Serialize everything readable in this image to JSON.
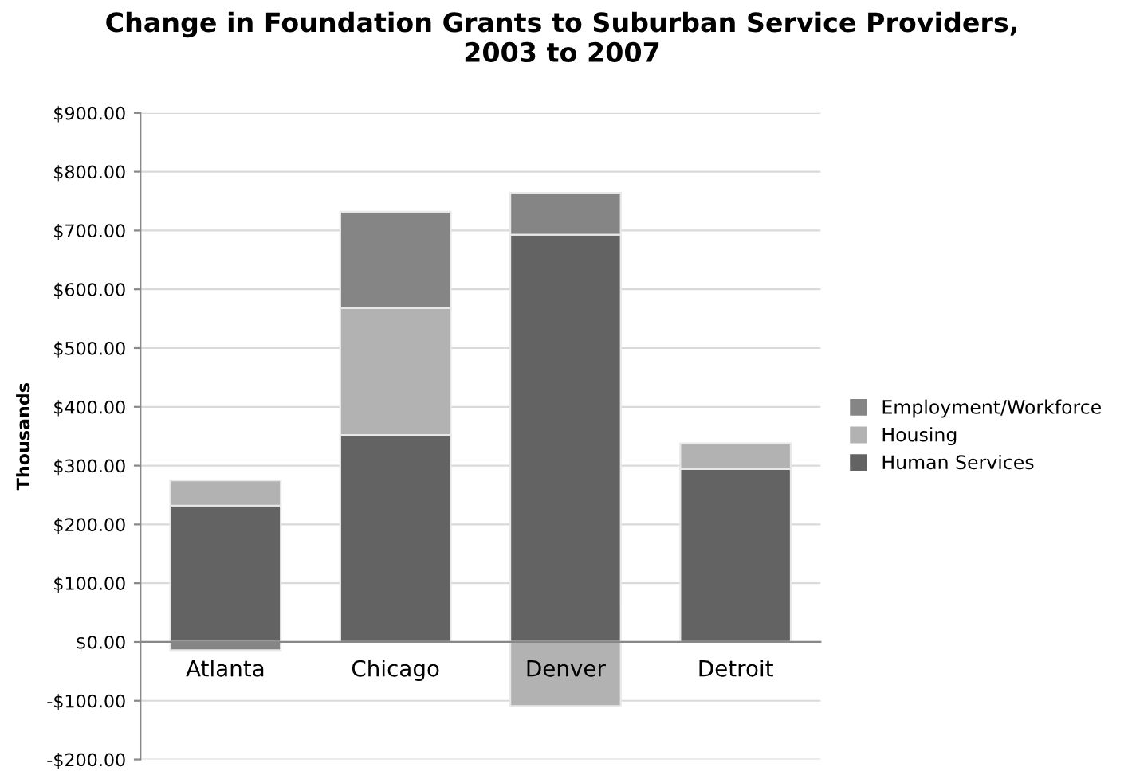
{
  "chart_data": {
    "type": "bar",
    "stacked": true,
    "title": "Change in Foundation Grants to Suburban Service Providers,\n2003 to 2007",
    "ylabel": "Thousands",
    "categories": [
      "Atlanta",
      "Chicago",
      "Denver",
      "Detroit"
    ],
    "series": [
      {
        "name": "Human Services",
        "color": "#636363",
        "values": [
          232,
          352,
          693,
          294
        ]
      },
      {
        "name": "Housing",
        "color": "#b2b2b2",
        "values": [
          43,
          216,
          -109,
          44
        ]
      },
      {
        "name": "Employment/Workforce",
        "color": "#858585",
        "values": [
          -14,
          164,
          71,
          null
        ]
      }
    ],
    "ylim": [
      -200,
      900
    ],
    "yticks": [
      {
        "value": -200,
        "label": "-$200.00"
      },
      {
        "value": -100,
        "label": "-$100.00"
      },
      {
        "value": 0,
        "label": "$0.00"
      },
      {
        "value": 100,
        "label": "$100.00"
      },
      {
        "value": 200,
        "label": "$200.00"
      },
      {
        "value": 300,
        "label": "$300.00"
      },
      {
        "value": 400,
        "label": "$400.00"
      },
      {
        "value": 500,
        "label": "$500.00"
      },
      {
        "value": 600,
        "label": "$600.00"
      },
      {
        "value": 700,
        "label": "$700.00"
      },
      {
        "value": 800,
        "label": "$800.00"
      },
      {
        "value": 900,
        "label": "$900.00"
      }
    ],
    "grid": "y",
    "legend": "right"
  }
}
